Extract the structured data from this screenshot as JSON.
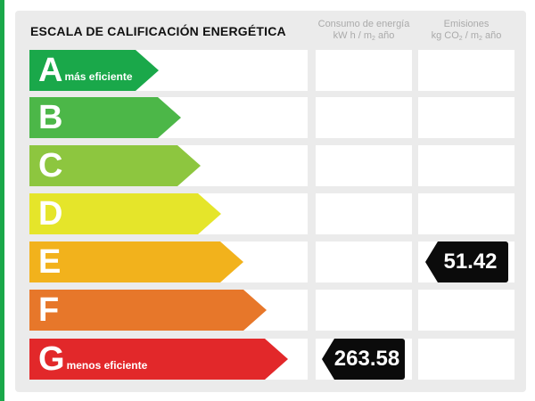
{
  "title": "ESCALA DE CALIFICACIÓN ENERGÉTICA",
  "columns": {
    "energy": {
      "line1": "Consumo de energía",
      "line2_pre": "kW h / m",
      "line2_sub": "2",
      "line2_post": " año"
    },
    "emissions": {
      "line1": "Emisiones",
      "line2_pre": "kg CO",
      "line2_sub": "2",
      "line2_mid": " / m",
      "line2_sub2": "2",
      "line2_post": " año"
    }
  },
  "ratings": [
    {
      "letter": "A",
      "label": "más eficiente",
      "color": "#1aa84a",
      "energy": "",
      "emissions": ""
    },
    {
      "letter": "B",
      "label": "",
      "color": "#4cb748",
      "energy": "",
      "emissions": ""
    },
    {
      "letter": "C",
      "label": "",
      "color": "#8dc63f",
      "energy": "",
      "emissions": ""
    },
    {
      "letter": "D",
      "label": "",
      "color": "#e5e52a",
      "energy": "",
      "emissions": ""
    },
    {
      "letter": "E",
      "label": "",
      "color": "#f2b21c",
      "energy": "",
      "emissions": "51.42"
    },
    {
      "letter": "F",
      "label": "",
      "color": "#e7772a",
      "energy": "",
      "emissions": ""
    },
    {
      "letter": "G",
      "label": "menos eficiente",
      "color": "#e2282a",
      "energy": "263.58",
      "emissions": ""
    }
  ]
}
